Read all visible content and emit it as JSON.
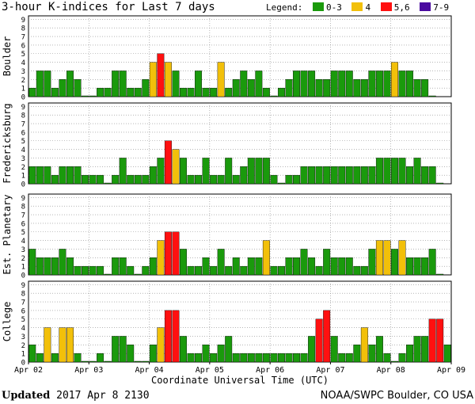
{
  "title": "3-hour K-indices for Last 7 days",
  "legend": {
    "label": "Legend:",
    "items": [
      {
        "text": "0-3",
        "color": "#1a9a0c"
      },
      {
        "text": "4",
        "color": "#f2c00a"
      },
      {
        "text": "5,6",
        "color": "#ff1010"
      },
      {
        "text": "7-9",
        "color": "#4a0aa0"
      }
    ]
  },
  "footer": {
    "updated_label": "Updated",
    "updated_value": "2017 Apr  8 2130",
    "credit": "NOAA/SWPC Boulder, CO USA"
  },
  "chart_data": [
    {
      "type": "bar",
      "ylabel": "Boulder",
      "ylim": [
        0,
        9
      ],
      "yticks": [
        "0",
        "1",
        "2",
        "3",
        "4",
        "5",
        "6",
        "7",
        "8",
        "9"
      ],
      "xlabel": "Coordinate Universal Time (UTC)",
      "xticks": [
        "Apr 02",
        "Apr 03",
        "Apr 04",
        "Apr 05",
        "Apr 06",
        "Apr 07",
        "Apr 08",
        "Apr 09"
      ],
      "values": [
        1,
        3,
        3,
        1,
        2,
        3,
        2,
        0,
        0,
        1,
        1,
        3,
        3,
        1,
        1,
        2,
        4,
        5,
        4,
        3,
        1,
        1,
        3,
        1,
        1,
        4,
        1,
        2,
        3,
        2,
        3,
        1,
        0,
        1,
        2,
        3,
        3,
        3,
        2,
        2,
        3,
        3,
        3,
        2,
        2,
        3,
        3,
        3,
        4,
        3,
        3,
        2,
        2,
        0
      ]
    },
    {
      "type": "bar",
      "ylabel": "Fredericksburg",
      "ylim": [
        0,
        9
      ],
      "yticks": [
        "0",
        "1",
        "2",
        "3",
        "4",
        "5",
        "6",
        "7",
        "8",
        "9"
      ],
      "xticks": [],
      "values": [
        2,
        2,
        2,
        1,
        2,
        2,
        2,
        1,
        1,
        1,
        0,
        1,
        3,
        1,
        1,
        1,
        2,
        3,
        5,
        4,
        3,
        1,
        1,
        3,
        1,
        1,
        3,
        1,
        2,
        3,
        3,
        3,
        1,
        0,
        1,
        1,
        2,
        2,
        2,
        2,
        2,
        2,
        2,
        2,
        2,
        2,
        3,
        3,
        3,
        3,
        2,
        3,
        2,
        2,
        0
      ]
    },
    {
      "type": "bar",
      "ylabel": "Est. Planetary",
      "ylim": [
        0,
        9
      ],
      "yticks": [
        "0",
        "1",
        "2",
        "3",
        "4",
        "5",
        "6",
        "7",
        "8",
        "9"
      ],
      "xticks": [],
      "values": [
        3,
        2,
        2,
        2,
        3,
        2,
        1,
        1,
        1,
        1,
        0,
        2,
        2,
        1,
        0,
        1,
        2,
        4,
        5,
        5,
        3,
        1,
        1,
        2,
        1,
        3,
        1,
        2,
        1,
        2,
        2,
        4,
        1,
        1,
        2,
        2,
        3,
        2,
        1,
        3,
        2,
        2,
        2,
        1,
        1,
        3,
        4,
        4,
        3,
        4,
        2,
        2,
        2,
        3,
        0
      ]
    },
    {
      "type": "bar",
      "ylabel": "College",
      "ylim": [
        0,
        9
      ],
      "yticks": [
        "0",
        "1",
        "2",
        "3",
        "4",
        "5",
        "6",
        "7",
        "8",
        "9"
      ],
      "xticks": [],
      "values": [
        2,
        1,
        4,
        1,
        4,
        4,
        1,
        0,
        0,
        1,
        0,
        3,
        3,
        2,
        0,
        0,
        2,
        4,
        6,
        6,
        3,
        1,
        1,
        2,
        1,
        2,
        3,
        1,
        1,
        1,
        1,
        1,
        1,
        1,
        1,
        1,
        1,
        3,
        5,
        6,
        3,
        1,
        1,
        2,
        4,
        2,
        3,
        1,
        0,
        1,
        2,
        3,
        3,
        5,
        5,
        2,
        2,
        2,
        0
      ]
    }
  ]
}
